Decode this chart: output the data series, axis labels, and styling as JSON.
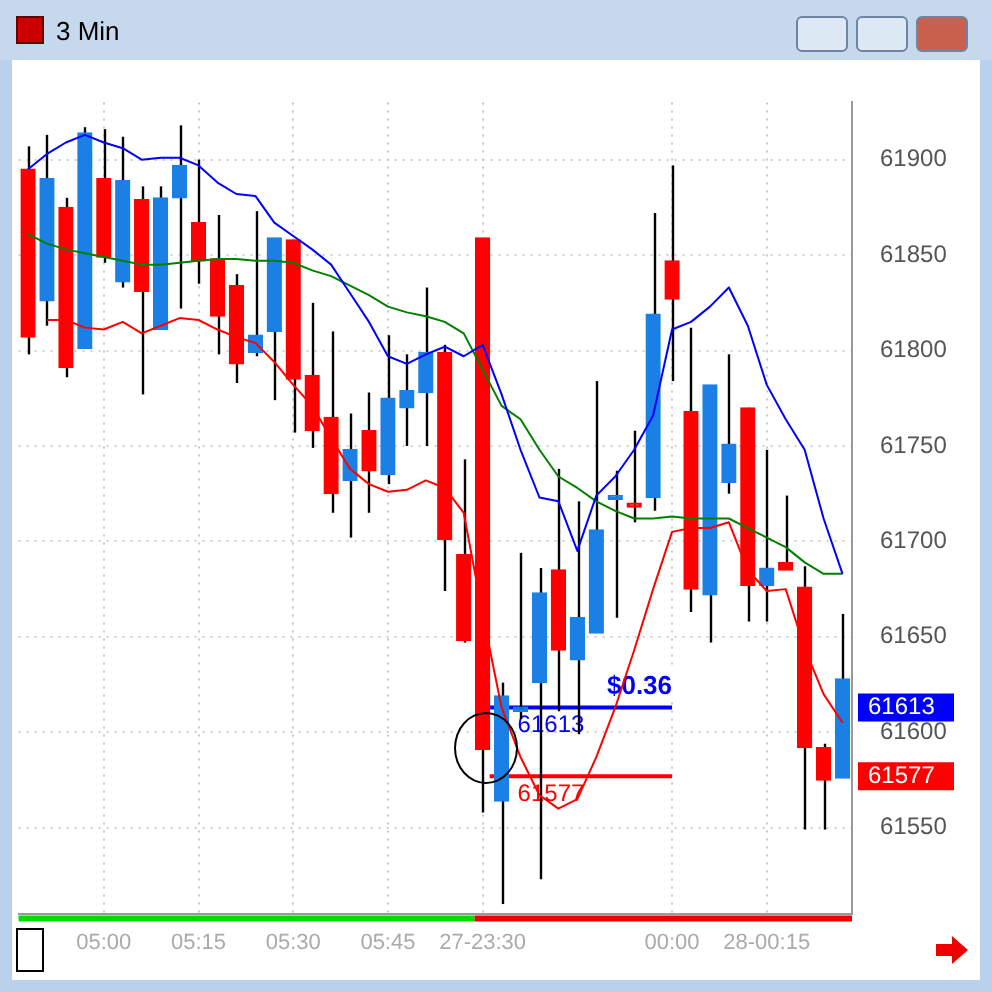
{
  "chart_data": {
    "type": "candlestick",
    "title": "3 Min",
    "categories": [
      null,
      null,
      null,
      null,
      "05:00",
      null,
      null,
      null,
      null,
      "05:15",
      null,
      null,
      null,
      null,
      "05:30",
      null,
      null,
      null,
      null,
      "05:45",
      null,
      null,
      null,
      null,
      "27-23:30",
      null,
      null,
      null,
      null,
      null,
      null,
      null,
      null,
      null,
      "00:00",
      null,
      null,
      null,
      null,
      "28-00:15",
      null,
      null,
      null,
      null
    ],
    "ohlc": [
      [
        61895,
        61907,
        61798,
        61807
      ],
      [
        61826,
        61913,
        61813,
        61890
      ],
      [
        61875,
        61880,
        61786,
        61791
      ],
      [
        61801,
        61917,
        61801,
        61914
      ],
      [
        61890,
        61916,
        61846,
        61849
      ],
      [
        61836,
        61912,
        61833,
        61889
      ],
      [
        61879,
        61886,
        61777,
        61831
      ],
      [
        61811,
        61886,
        61811,
        61880
      ],
      [
        61880,
        61918,
        61822,
        61897
      ],
      [
        61867,
        61900,
        61835,
        61847
      ],
      [
        61848,
        61871,
        61798,
        61818
      ],
      [
        61834,
        61840,
        61783,
        61793
      ],
      [
        61799,
        61873,
        61797,
        61808
      ],
      [
        61810,
        61859,
        61774,
        61859
      ],
      [
        61858,
        61858,
        61757,
        61785
      ],
      [
        61787,
        61825,
        61749,
        61758
      ],
      [
        61765,
        61810,
        61715,
        61725
      ],
      [
        61732,
        61767,
        61702,
        61748
      ],
      [
        61758,
        61778,
        61715,
        61737
      ],
      [
        61735,
        61808,
        61730,
        61775
      ],
      [
        61770,
        61798,
        61750,
        61779
      ],
      [
        61778,
        61833,
        61750,
        61799
      ],
      [
        61799,
        61803,
        61674,
        61701
      ],
      [
        61693,
        61743,
        61647,
        61648
      ],
      [
        61859,
        61859,
        61558,
        61591
      ],
      [
        61564,
        61626,
        61510,
        61619
      ],
      [
        61611,
        61694,
        61607,
        61613
      ],
      [
        61626,
        61686,
        61523,
        61673
      ],
      [
        61685,
        61738,
        61611,
        61643
      ],
      [
        61638,
        61721,
        61599,
        61660
      ],
      [
        61652,
        61784,
        61652,
        61706
      ],
      [
        61722,
        61737,
        61660,
        61724
      ],
      [
        61719,
        61758,
        61710,
        61718
      ],
      [
        61723,
        61872,
        61716,
        61819
      ],
      [
        61847,
        61897,
        61784,
        61827
      ],
      [
        61768,
        61812,
        61663,
        61675
      ],
      [
        61672,
        61782,
        61647,
        61782
      ],
      [
        61731,
        61798,
        61725,
        61751
      ],
      [
        61770,
        61770,
        61658,
        61677
      ],
      [
        61677,
        61748,
        61658,
        61686
      ],
      [
        61689,
        61724,
        61685,
        61685
      ],
      [
        61676,
        61687,
        61549,
        61592
      ],
      [
        61592,
        61594,
        61549,
        61575
      ],
      [
        61576,
        61662,
        61576,
        61628
      ]
    ],
    "colors": [
      "#ff0000",
      "#1a80e6",
      "#ff0000",
      "#1a80e6",
      "#ff0000",
      "#1a80e6",
      "#ff0000",
      "#1a80e6",
      "#1a80e6",
      "#ff0000",
      "#ff0000",
      "#ff0000",
      "#1a80e6",
      "#1a80e6",
      "#ff0000",
      "#ff0000",
      "#ff0000",
      "#1a80e6",
      "#ff0000",
      "#1a80e6",
      "#1a80e6",
      "#1a80e6",
      "#ff0000",
      "#ff0000",
      "#ff0000",
      "#1a80e6",
      "#1a80e6",
      "#1a80e6",
      "#ff0000",
      "#1a80e6",
      "#1a80e6",
      "#1a80e6",
      "#ff0000",
      "#1a80e6",
      "#ff0000",
      "#ff0000",
      "#1a80e6",
      "#1a80e6",
      "#ff0000",
      "#1a80e6",
      "#ff0000",
      "#ff0000",
      "#ff0000",
      "#1a80e6"
    ],
    "series": [
      {
        "type": "line",
        "color": "#0000ff",
        "values": [
          61895,
          61903,
          61909,
          61913,
          61909,
          61906,
          61900,
          61901,
          61901,
          61897,
          61888,
          61882,
          61881,
          61867,
          61860,
          61853,
          61845,
          61830,
          61815,
          61797,
          61793,
          61798,
          61802,
          61797,
          61803,
          61777,
          61748,
          61723,
          61721,
          61695,
          61724,
          61734,
          61748,
          61766,
          61811,
          61815,
          61823,
          61833,
          61813,
          61782,
          61764,
          61748,
          61712,
          61683
        ]
      },
      {
        "type": "line",
        "color": "#008000",
        "values": [
          61861,
          61856,
          61853,
          61851,
          61849,
          61847,
          61845,
          61845,
          61846,
          61847,
          61848,
          61848,
          61847,
          61847,
          61846,
          61842,
          61839,
          61834,
          61829,
          61823,
          61820,
          61818,
          61815,
          61809,
          61790,
          61771,
          61764,
          61748,
          61734,
          61728,
          61721,
          61716,
          61712,
          61712,
          61713,
          61712,
          61712,
          61712,
          61707,
          61702,
          61697,
          61689,
          61683,
          61683
        ]
      },
      {
        "type": "line",
        "color": "#ff0000",
        "values": [
          null,
          61816,
          61816,
          61812,
          61811,
          61815,
          61809,
          61813,
          61817,
          61816,
          61811,
          61807,
          61804,
          61794,
          61782,
          61771,
          61754,
          61738,
          61730,
          61726,
          61727,
          61732,
          61728,
          61715,
          61662,
          61613,
          61587,
          61567,
          61560,
          61565,
          61587,
          61613,
          61643,
          61675,
          61705,
          61707,
          61707,
          61710,
          61685,
          61674,
          61675,
          61644,
          61620,
          61605
        ]
      }
    ],
    "ylim": [
      61505,
      61930
    ],
    "yticks": [
      61550,
      61600,
      61650,
      61700,
      61750,
      61800,
      61850,
      61900
    ],
    "grid": true,
    "ref_lines": [
      {
        "axis": "y",
        "value": 61613,
        "label": "61613",
        "color": "#0000ff"
      },
      {
        "axis": "y",
        "value": 61577,
        "label": "61577",
        "color": "#ff0000"
      }
    ],
    "annotations": [
      "$0.36"
    ]
  }
}
